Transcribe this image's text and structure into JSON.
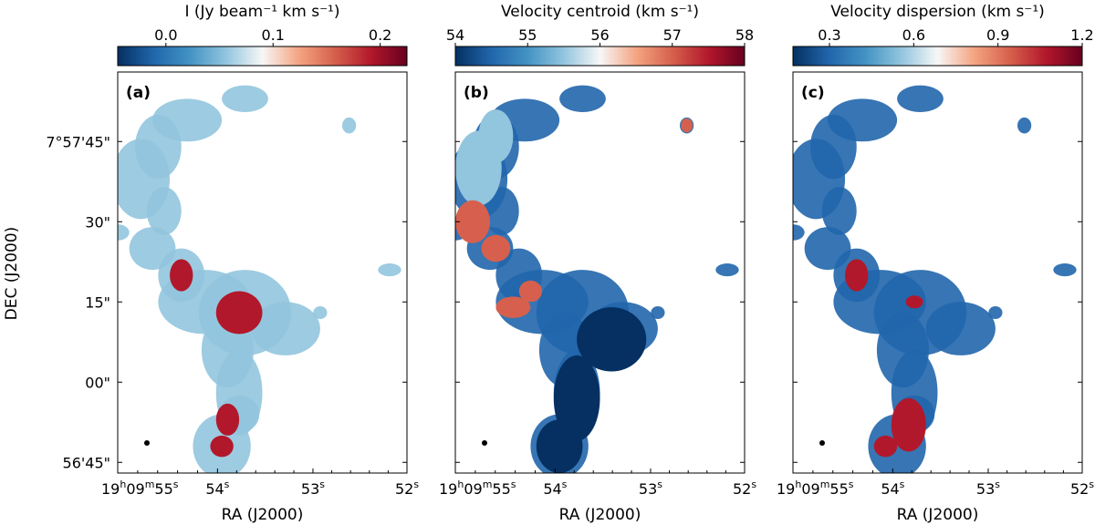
{
  "figure": {
    "ylabel": "DEC (J2000)",
    "ytick_labels": [
      "7°57'45\"",
      "30\"",
      "15\"",
      "00\"",
      "56'45\""
    ],
    "ytick_values": [
      45,
      30,
      15,
      0,
      -15
    ],
    "ylim": [
      -17,
      58
    ],
    "xlim": [
      -25,
      25
    ]
  },
  "chart_data": [
    {
      "type": "heatmap",
      "panel_label": "(a)",
      "colorbar_label": "I (Jy beam⁻¹ km s⁻¹)",
      "colorbar_ticks": [
        "0.0",
        "0.1",
        "0.2"
      ],
      "colorbar_tick_values": [
        0.0,
        0.1,
        0.2
      ],
      "colorbar_range": [
        -0.045,
        0.225
      ],
      "colormap": [
        "#053061",
        "#2166ac",
        "#4393c3",
        "#92c5de",
        "#f7f7f7",
        "#f4a582",
        "#d6604d",
        "#b2182b",
        "#67001f"
      ],
      "xlabel": "RA (J2000)",
      "xtick_labels": [
        "19h09m55s",
        "54s",
        "53s",
        "52s"
      ]
    },
    {
      "type": "heatmap",
      "panel_label": "(b)",
      "colorbar_label": "Velocity centroid (km s⁻¹)",
      "colorbar_ticks": [
        "54",
        "55",
        "56",
        "57",
        "58"
      ],
      "colorbar_tick_values": [
        54,
        55,
        56,
        57,
        58
      ],
      "colorbar_range": [
        54,
        58
      ],
      "colormap": [
        "#053061",
        "#2166ac",
        "#4393c3",
        "#92c5de",
        "#f7f7f7",
        "#f4a582",
        "#d6604d",
        "#b2182b",
        "#67001f"
      ],
      "xlabel": "RA (J2000)",
      "xtick_labels": [
        "19h09m55s",
        "54s",
        "53s",
        "52s"
      ]
    },
    {
      "type": "heatmap",
      "panel_label": "(c)",
      "colorbar_label": "Velocity dispersion (km s⁻¹)",
      "colorbar_ticks": [
        "0.3",
        "0.6",
        "0.9",
        "1.2"
      ],
      "colorbar_tick_values": [
        0.3,
        0.6,
        0.9,
        1.2
      ],
      "colorbar_range": [
        0.17,
        1.2
      ],
      "colormap": [
        "#053061",
        "#2166ac",
        "#4393c3",
        "#92c5de",
        "#f7f7f7",
        "#f4a582",
        "#d6604d",
        "#b2182b",
        "#67001f"
      ],
      "xlabel": "RA (J2000)",
      "xtick_labels": [
        "19h09m55s",
        "54s",
        "53s",
        "52s"
      ]
    }
  ]
}
